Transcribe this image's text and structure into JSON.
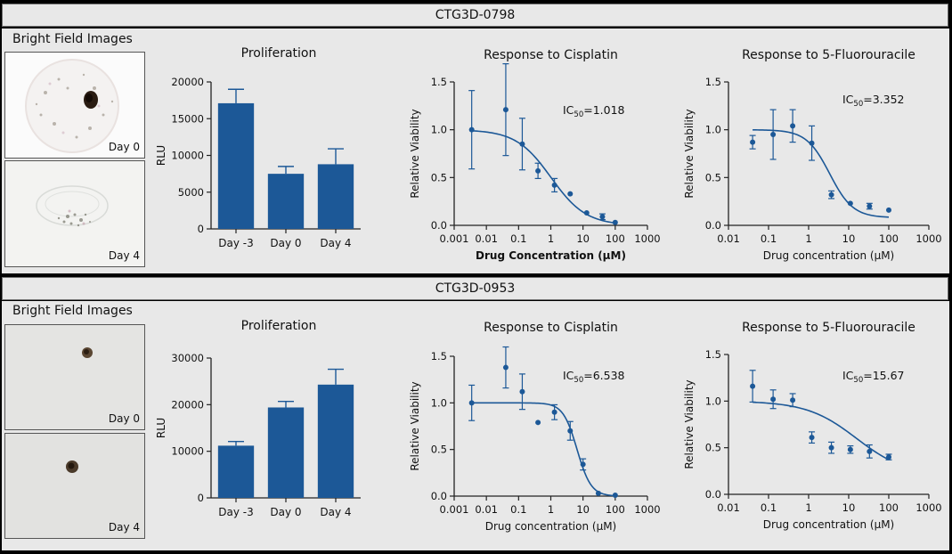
{
  "sections": [
    {
      "sample": "CTG3D-0798",
      "bright_field": {
        "title": "Bright Field Images",
        "days": [
          "Day 0",
          "Day 4"
        ]
      }
    },
    {
      "sample": "CTG3D-0953",
      "bright_field": {
        "title": "Bright Field Images",
        "days": [
          "Day 0",
          "Day 4"
        ]
      }
    }
  ],
  "colors": {
    "bar": "#1c5897",
    "line": "#1c5897",
    "panel": "#e8e8e8"
  },
  "chart_data": [
    {
      "type": "bar",
      "sample": "CTG3D-0798",
      "title": "Proliferation",
      "ylabel": "RLU",
      "xlabel": "",
      "categories": [
        "Day -3",
        "Day 0",
        "Day 4"
      ],
      "values": [
        17100,
        7500,
        8800
      ],
      "errors": [
        1900,
        1000,
        2100
      ],
      "ylim": [
        0,
        20000
      ],
      "yticks": [
        0,
        5000,
        10000,
        15000,
        20000
      ]
    },
    {
      "type": "scatter",
      "sample": "CTG3D-0798",
      "title": "Response to Cisplatin",
      "xlabel": "Drug Concentration (µM)",
      "xlabel_bold": true,
      "ylabel": "Relative Viability",
      "x_scale": "log",
      "xlim": [
        0.001,
        1000
      ],
      "xticks": [
        0.001,
        0.01,
        0.1,
        1,
        10,
        100,
        1000
      ],
      "xtick_labels": [
        "0.001",
        "0.01",
        "0.1",
        "1",
        "10",
        "100",
        "1000"
      ],
      "ylim": [
        0,
        1.5
      ],
      "yticks": [
        0,
        0.5,
        1.0,
        1.5
      ],
      "ytick_labels": [
        "0.0",
        "0.5",
        "1.0",
        "1.5"
      ],
      "x": [
        0.0035,
        0.04,
        0.13,
        0.4,
        1.3,
        4,
        13,
        40,
        100
      ],
      "y": [
        1.0,
        1.21,
        0.85,
        0.57,
        0.42,
        0.33,
        0.13,
        0.09,
        0.03
      ],
      "yerr": [
        0.41,
        0.48,
        0.27,
        0.08,
        0.07,
        0.0,
        0.0,
        0.03,
        0.0
      ],
      "fit": {
        "top": 1.0,
        "bottom": 0.0,
        "ic50": 1.018,
        "hill": 0.8
      },
      "ic50_prefix": "IC",
      "ic50_sub": "50",
      "ic50_text": "=1.018"
    },
    {
      "type": "scatter",
      "sample": "CTG3D-0798",
      "title": "Response to 5-Fluorouracile",
      "xlabel": "Drug concentration (µM)",
      "xlabel_bold": false,
      "ylabel": "Relative Viability",
      "x_scale": "log",
      "xlim": [
        0.01,
        1000
      ],
      "xticks": [
        0.01,
        0.1,
        1,
        10,
        100,
        1000
      ],
      "xtick_labels": [
        "0.01",
        "0.1",
        "1",
        "10",
        "100",
        "1000"
      ],
      "ylim": [
        0,
        1.5
      ],
      "yticks": [
        0,
        0.5,
        1.0,
        1.5
      ],
      "ytick_labels": [
        "0.0",
        "0.5",
        "1.0",
        "1.5"
      ],
      "x": [
        0.04,
        0.13,
        0.4,
        1.2,
        3.7,
        11,
        33,
        100
      ],
      "y": [
        0.87,
        0.95,
        1.04,
        0.86,
        0.32,
        0.23,
        0.2,
        0.16
      ],
      "yerr": [
        0.07,
        0.26,
        0.17,
        0.18,
        0.04,
        0.0,
        0.03,
        0.0
      ],
      "fit": {
        "top": 1.0,
        "bottom": 0.08,
        "ic50": 3.352,
        "hill": 1.5
      },
      "ic50_prefix": "IC",
      "ic50_sub": "50",
      "ic50_text": "=3.352"
    },
    {
      "type": "bar",
      "sample": "CTG3D-0953",
      "title": "Proliferation",
      "ylabel": "RLU",
      "xlabel": "",
      "categories": [
        "Day -3",
        "Day 0",
        "Day 4"
      ],
      "values": [
        11200,
        19400,
        24300
      ],
      "errors": [
        900,
        1300,
        3300
      ],
      "ylim": [
        0,
        30000
      ],
      "yticks": [
        0,
        10000,
        20000,
        30000
      ]
    },
    {
      "type": "scatter",
      "sample": "CTG3D-0953",
      "title": "Response to Cisplatin",
      "xlabel": "Drug concentration (µM)",
      "xlabel_bold": false,
      "ylabel": "Relative Viability",
      "x_scale": "log",
      "xlim": [
        0.001,
        1000
      ],
      "xticks": [
        0.001,
        0.01,
        0.1,
        1,
        10,
        100,
        1000
      ],
      "xtick_labels": [
        "0.001",
        "0.01",
        "0.1",
        "1",
        "10",
        "100",
        "1000"
      ],
      "ylim": [
        0,
        1.5
      ],
      "yticks": [
        0,
        0.5,
        1.0,
        1.5
      ],
      "ytick_labels": [
        "0.0",
        "0.5",
        "1.0",
        "1.5"
      ],
      "x": [
        0.0035,
        0.04,
        0.13,
        0.4,
        1.3,
        4,
        10,
        30,
        100
      ],
      "y": [
        1.0,
        1.38,
        1.12,
        0.79,
        0.9,
        0.7,
        0.34,
        0.03,
        0.01
      ],
      "yerr": [
        0.19,
        0.22,
        0.19,
        0.0,
        0.08,
        0.1,
        0.06,
        0.0,
        0.0
      ],
      "fit": {
        "top": 1.0,
        "bottom": 0.0,
        "ic50": 6.538,
        "hill": 2.0
      },
      "ic50_prefix": "IC",
      "ic50_sub": "50",
      "ic50_text": "=6.538"
    },
    {
      "type": "scatter",
      "sample": "CTG3D-0953",
      "title": "Response to 5-Fluorouracile",
      "xlabel": "Drug concentration (µM)",
      "xlabel_bold": false,
      "ylabel": "Relative Viability",
      "x_scale": "log",
      "xlim": [
        0.01,
        1000
      ],
      "xticks": [
        0.01,
        0.1,
        1,
        10,
        100,
        1000
      ],
      "xtick_labels": [
        "0.01",
        "0.1",
        "1",
        "10",
        "100",
        "1000"
      ],
      "ylim": [
        0,
        1.5
      ],
      "yticks": [
        0,
        0.5,
        1.0,
        1.5
      ],
      "ytick_labels": [
        "0.0",
        "0.5",
        "1.0",
        "1.5"
      ],
      "x": [
        0.04,
        0.13,
        0.4,
        1.2,
        3.7,
        11,
        33,
        100
      ],
      "y": [
        1.16,
        1.02,
        1.01,
        0.61,
        0.5,
        0.48,
        0.46,
        0.4
      ],
      "yerr": [
        0.17,
        0.1,
        0.07,
        0.06,
        0.06,
        0.04,
        0.07,
        0.03
      ],
      "fit": {
        "top": 1.0,
        "bottom": 0.2,
        "ic50": 15.67,
        "hill": 0.7
      },
      "ic50_prefix": "IC",
      "ic50_sub": "50",
      "ic50_text": "=15.67"
    }
  ]
}
